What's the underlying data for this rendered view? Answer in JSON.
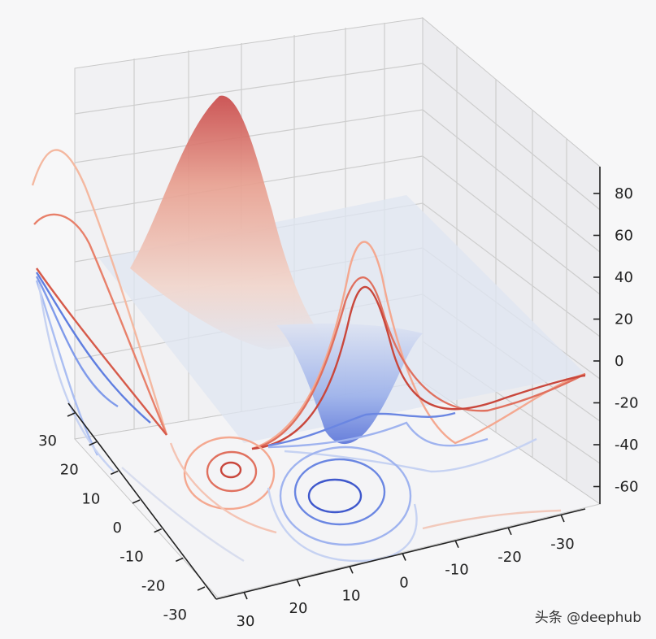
{
  "chart_data": {
    "type": "surface3d",
    "title": "",
    "xlabel": "",
    "ylabel": "",
    "zlabel": "",
    "grid": true,
    "colormap": "coolwarm",
    "x_ticks": [
      -30,
      -20,
      -10,
      0,
      10,
      20,
      30
    ],
    "y_ticks": [
      30,
      20,
      10,
      0,
      -10,
      -20,
      -30
    ],
    "z_ticks": [
      80,
      60,
      40,
      20,
      0,
      -20,
      -40,
      -60
    ],
    "xlim": [
      -30,
      30
    ],
    "ylim": [
      -30,
      30
    ],
    "zlim": [
      -70,
      90
    ],
    "surface_peaks": [
      {
        "kind": "max",
        "z": 85
      },
      {
        "kind": "min",
        "z": -42
      }
    ],
    "contour_projections": [
      "z-offset (floor)",
      "x-offset (back wall)",
      "y-offset (side wall)"
    ],
    "colors": {
      "high": "#b40426",
      "mid": "#dddddd",
      "low": "#3b4cc0"
    }
  },
  "watermark": "头条 @deephub"
}
